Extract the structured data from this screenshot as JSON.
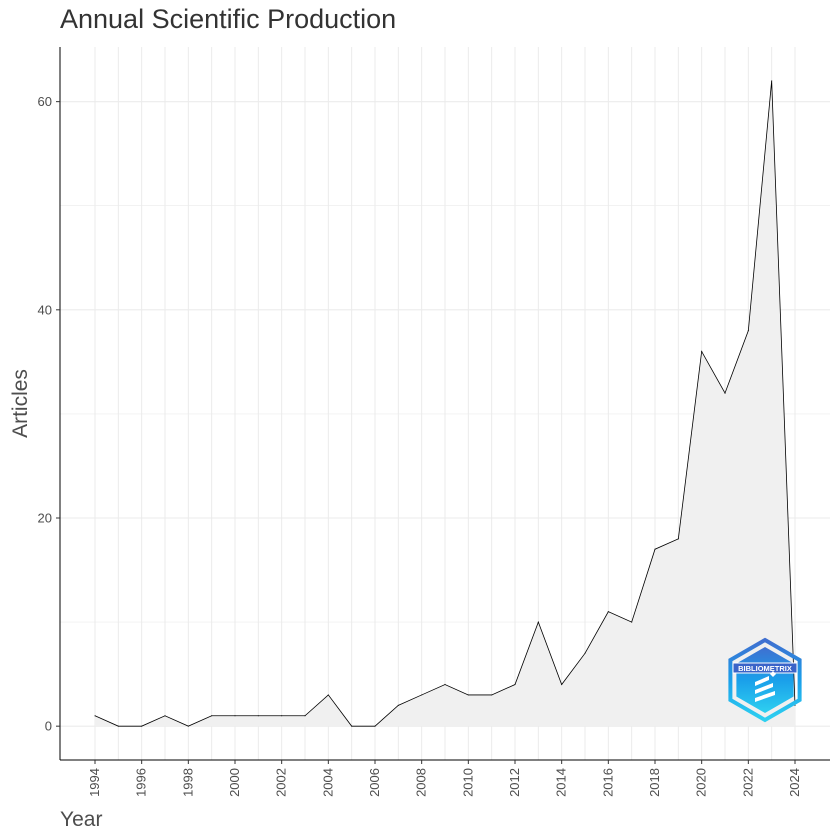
{
  "chart_data": {
    "type": "area",
    "title": "Annual Scientific Production",
    "xlabel": "Year",
    "ylabel": "Articles",
    "x": [
      1994,
      1995,
      1996,
      1997,
      1998,
      1999,
      2000,
      2001,
      2002,
      2003,
      2004,
      2005,
      2006,
      2007,
      2008,
      2009,
      2010,
      2011,
      2012,
      2013,
      2014,
      2015,
      2016,
      2017,
      2018,
      2019,
      2020,
      2021,
      2022,
      2023,
      2024
    ],
    "values": [
      1,
      0,
      0,
      1,
      0,
      1,
      1,
      1,
      1,
      1,
      3,
      0,
      0,
      2,
      3,
      4,
      3,
      3,
      4,
      10,
      4,
      7,
      11,
      10,
      17,
      18,
      36,
      32,
      38,
      62,
      2
    ],
    "xticks": [
      1994,
      1996,
      1998,
      2000,
      2002,
      2004,
      2006,
      2008,
      2010,
      2012,
      2014,
      2016,
      2018,
      2020,
      2022,
      2024
    ],
    "yticks": [
      0,
      20,
      40,
      60
    ],
    "xlim": [
      1992.5,
      2025.5
    ],
    "ylim": [
      -3.25,
      65.25
    ],
    "grid": true,
    "fill_color": "#f0f0f0",
    "line_color": "#000000",
    "logo": {
      "name": "bibliometrix-logo",
      "text": "BIBLIOMETRIX",
      "colors": [
        "#3f6fd0",
        "#1a9fea",
        "#2ed0f0"
      ]
    }
  }
}
